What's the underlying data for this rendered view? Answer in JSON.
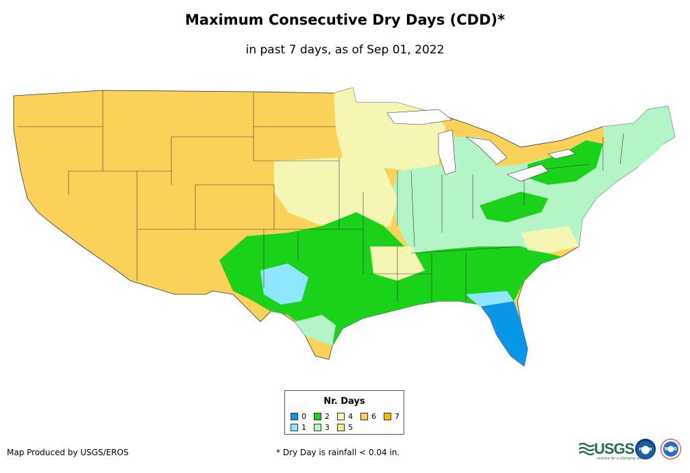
{
  "header": {
    "title": "Maximum Consecutive Dry Days (CDD)*",
    "subtitle": "in past 7 days, as of Sep 01, 2022"
  },
  "legend": {
    "title": "Nr. Days",
    "items": [
      {
        "label": "0",
        "color": "#0a96e6"
      },
      {
        "label": "1",
        "color": "#8ee6ff"
      },
      {
        "label": "2",
        "color": "#19d219"
      },
      {
        "label": "3",
        "color": "#b4f5c8"
      },
      {
        "label": "4",
        "color": "#f5f5b4"
      },
      {
        "label": "5",
        "color": "#fae68c"
      },
      {
        "label": "6",
        "color": "#fad25a"
      },
      {
        "label": "7",
        "color": "#f5be00"
      }
    ]
  },
  "footer": {
    "credit": "Map Produced by USGS/EROS",
    "note": "* Dry Day is rainfall < 0.04 in."
  },
  "logos": {
    "usgs": "USGS",
    "usgs_tagline": "science for a changing world",
    "noaa": "noaa",
    "nws": "NWS"
  },
  "colors": {
    "border": "#333333",
    "background": "#ffffff"
  }
}
